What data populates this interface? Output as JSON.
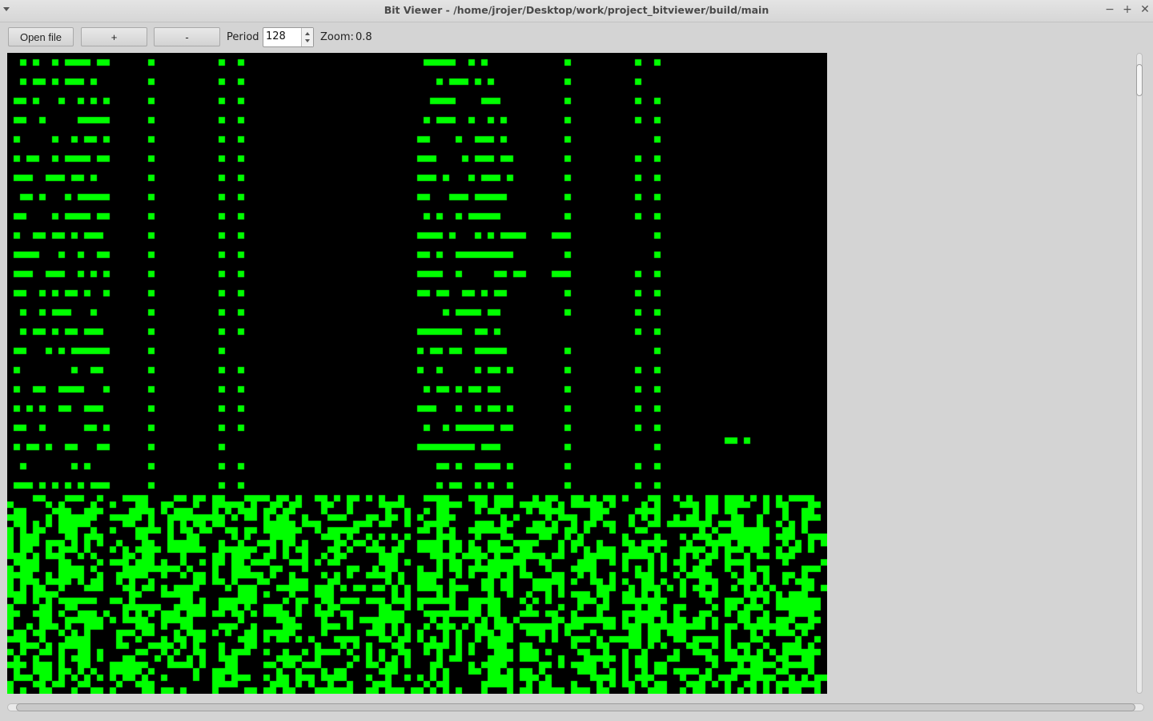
{
  "window": {
    "title": "Bit Viewer - /home/jrojer/Desktop/work/project_bitviewer/build/main",
    "menu_icon": "chevron-down-icon",
    "minimize_glyph": "−",
    "maximize_glyph": "+",
    "close_glyph": "✕"
  },
  "toolbar": {
    "open_file_label": "Open file",
    "zoom_in_label": "+",
    "zoom_out_label": "-",
    "period_label": "Period",
    "period_value": "128",
    "zoom_label": "Zoom:",
    "zoom_value": "0.8"
  },
  "bitmap": {
    "on_color": "#00ff00",
    "off_color": "#000000",
    "columns": 128,
    "rows": 100,
    "header_rows": 69
  },
  "colors": {
    "window_bg": "#d4d4d4"
  }
}
